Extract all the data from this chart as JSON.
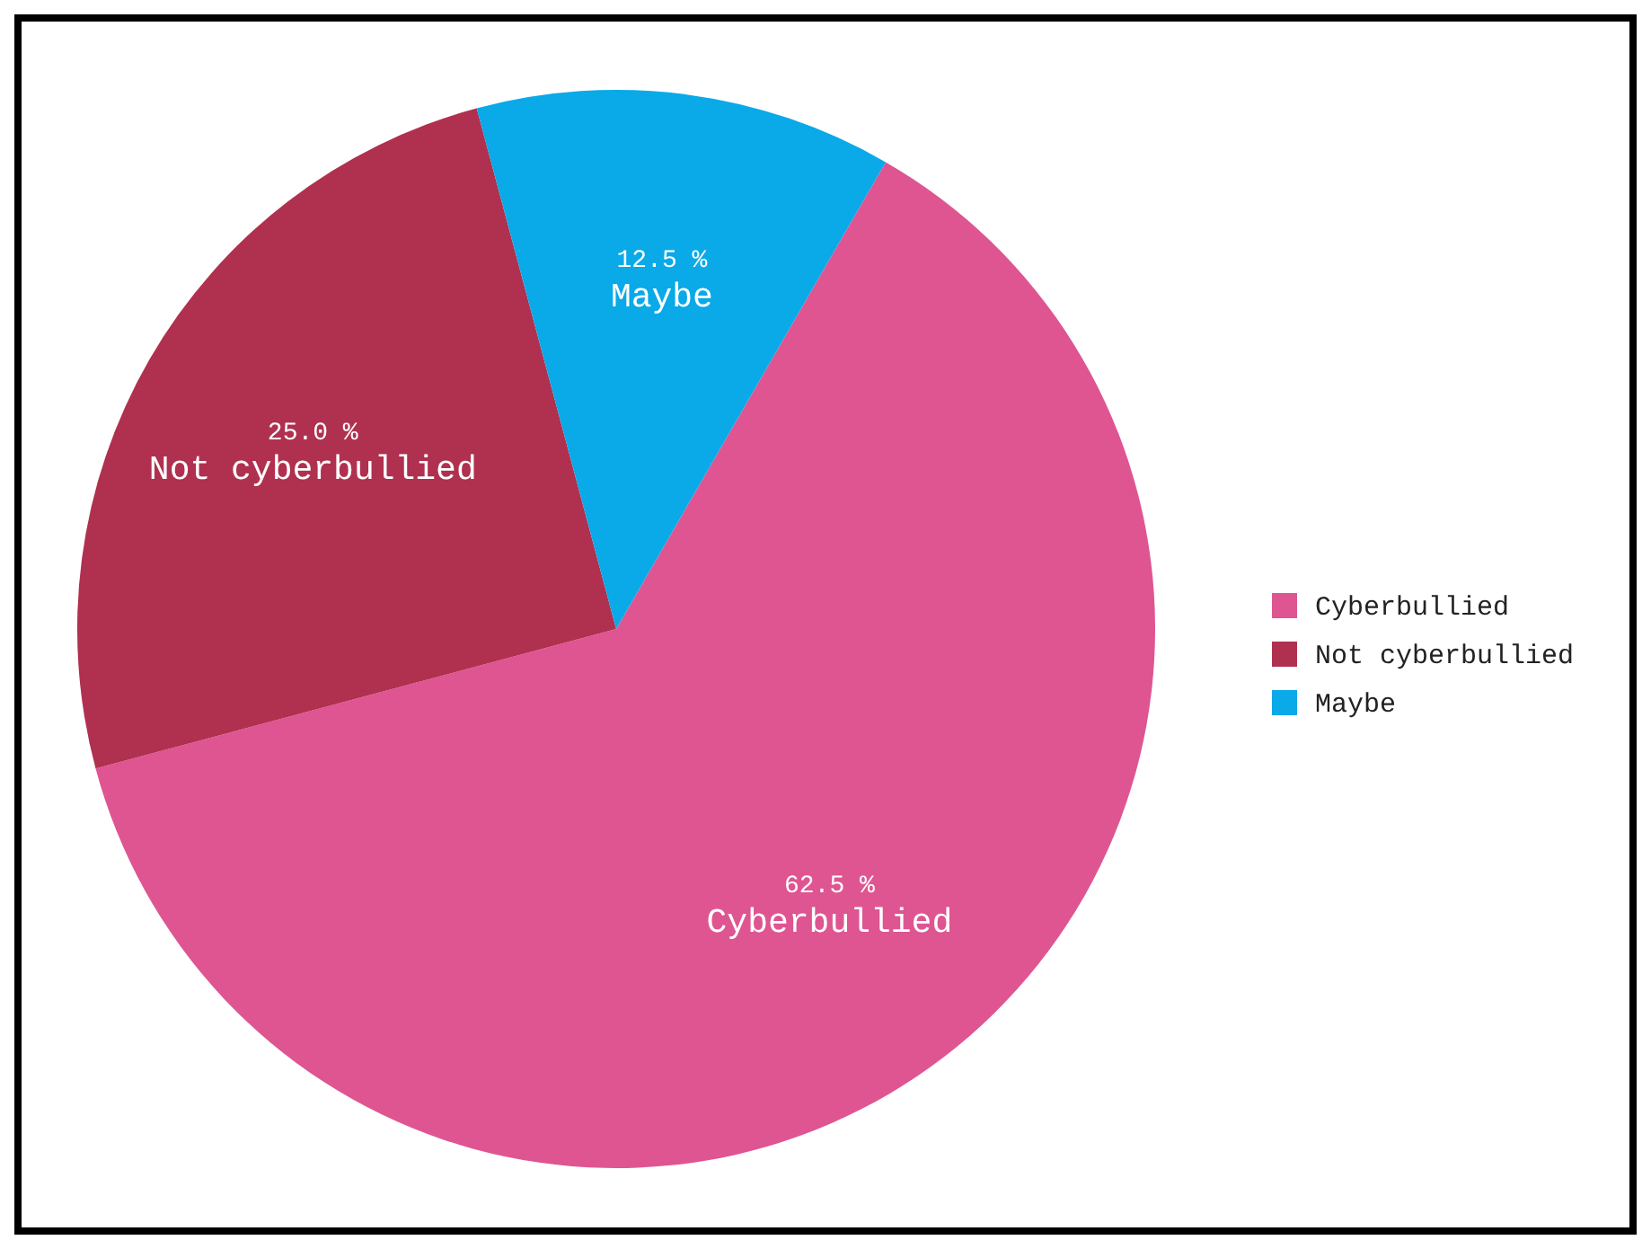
{
  "chart_data": {
    "type": "pie",
    "categories": [
      "Cyberbullied",
      "Not cyberbullied",
      "Maybe"
    ],
    "values": [
      62.5,
      25.0,
      12.5
    ],
    "value_labels": [
      "62.5 %",
      "25.0 %",
      "12.5 %"
    ],
    "colors": [
      "#de5591",
      "#b0304f",
      "#0aa9e8"
    ],
    "legend": "right"
  }
}
